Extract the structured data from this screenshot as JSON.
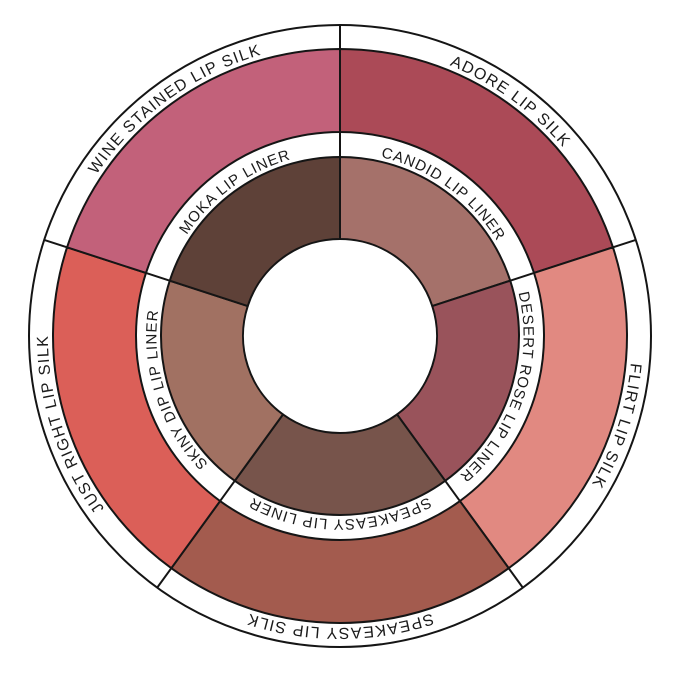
{
  "page": {
    "background": "#ffffff"
  },
  "wheel": {
    "stroke_color": "#151515",
    "label_color": "#1b1b1b",
    "band_background": "#ffffff",
    "center_background": "#ffffff",
    "outer_ring": {
      "name": "lip-silk-shades",
      "segments": [
        {
          "label": "ADORE LIP SILK",
          "color": "#AB4A57"
        },
        {
          "label": "FLIRT LIP SILK",
          "color": "#E18981"
        },
        {
          "label": "SPEAKEASY LIP SILK",
          "color": "#A35B4E"
        },
        {
          "label": "JUST RIGHT LIP SILK",
          "color": "#DB5F58"
        },
        {
          "label": "WINE STAINED LIP SILK",
          "color": "#C2617A"
        }
      ]
    },
    "inner_ring": {
      "name": "lip-liner-shades",
      "segments": [
        {
          "label": "CANDID LIP LINER",
          "color": "#A5716A"
        },
        {
          "label": "DESERT ROSE LIP LINER",
          "color": "#99535B"
        },
        {
          "label": "SPEAKEASY LIP LINER",
          "color": "#77544B"
        },
        {
          "label": "SKINY DIP LIP LINER",
          "color": "#A17162"
        },
        {
          "label": "MOKA LIP LINER",
          "color": "#5E4138"
        }
      ]
    }
  }
}
